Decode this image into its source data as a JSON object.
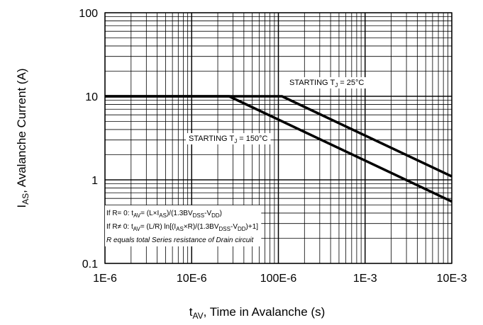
{
  "chart_data": {
    "type": "line",
    "xlabel": {
      "main": "t",
      "sub": "AV",
      "rest": ", Time in Avalanche (s)"
    },
    "ylabel": {
      "main": "I",
      "sub": "AS",
      "rest": ", Avalanche Current (A)"
    },
    "x_scale": "log",
    "y_scale": "log",
    "xlim": [
      1e-06,
      0.01
    ],
    "ylim": [
      0.1,
      100
    ],
    "grid": true,
    "x_ticks": [
      {
        "value": 1e-06,
        "label": "1E-6"
      },
      {
        "value": 1e-05,
        "label": "10E-6"
      },
      {
        "value": 0.0001,
        "label": "100E-6"
      },
      {
        "value": 0.001,
        "label": "1E-3"
      },
      {
        "value": 0.01,
        "label": "10E-3"
      }
    ],
    "y_ticks": [
      {
        "value": 0.1,
        "label": "0.1"
      },
      {
        "value": 1,
        "label": "1"
      },
      {
        "value": 10,
        "label": "10"
      },
      {
        "value": 100,
        "label": "100"
      }
    ],
    "series": [
      {
        "label": {
          "pre": "STARTING T",
          "sub": "J",
          "post": " = 25°C"
        },
        "x": [
          1e-06,
          0.00011,
          0.01
        ],
        "y": [
          10,
          10,
          1.1
        ]
      },
      {
        "label": {
          "pre": "STARTING T",
          "sub": "J",
          "post": " = 150°C"
        },
        "x": [
          1e-06,
          2.7e-05,
          0.01
        ],
        "y": [
          10,
          10,
          0.55
        ]
      }
    ],
    "notes": [
      {
        "parts": [
          {
            "t": "If R= 0: t"
          },
          {
            "t": "AV",
            "sub": true
          },
          {
            "t": "= (L×I"
          },
          {
            "t": "AS",
            "sub": true
          },
          {
            "t": ")/(1.3BV"
          },
          {
            "t": "DSS",
            "sub": true
          },
          {
            "t": "-V"
          },
          {
            "t": "DD",
            "sub": true
          },
          {
            "t": ")"
          }
        ]
      },
      {
        "parts": [
          {
            "t": "If R≠ 0: t"
          },
          {
            "t": "AV",
            "sub": true
          },
          {
            "t": "= (L/R) ln[(I"
          },
          {
            "t": "AS",
            "sub": true
          },
          {
            "t": "×R)/(1.3BV"
          },
          {
            "t": "DSS",
            "sub": true
          },
          {
            "t": "-V"
          },
          {
            "t": "DD",
            "sub": true
          },
          {
            "t": ")+1]"
          }
        ]
      },
      {
        "italic": true,
        "parts": [
          {
            "t": "R equals total Series resistance of Drain circuit"
          }
        ]
      }
    ]
  }
}
